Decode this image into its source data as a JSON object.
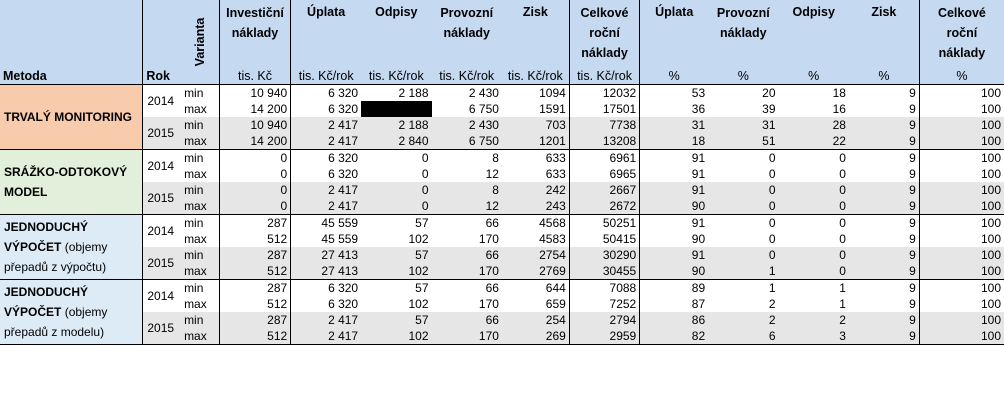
{
  "header": {
    "metoda": "Metoda",
    "rok": "Rok",
    "varianta": "Varianta",
    "investicni": "Investiční náklady",
    "uplata": "Úplata",
    "odpisy": "Odpisy",
    "provozni": "Provozní náklady",
    "zisk": "Zisk",
    "celkove": "Celkové roční náklady",
    "uplata_pct": "Úplata",
    "provozni_pct": "Provozní náklady",
    "odpisy_pct": "Odpisy",
    "zisk_pct": "Zisk",
    "celkove_pct": "Celkové roční náklady"
  },
  "units": {
    "investicni": "tis. Kč",
    "uplata": "tis. Kč/rok",
    "odpisy": "tis. Kč/rok",
    "provozni": "tis. Kč/rok",
    "zisk": "tis. Kč/rok",
    "celkove": "tis. Kč/rok",
    "uplata_pct": "%",
    "provozni_pct": "%",
    "odpisy_pct": "%",
    "zisk_pct": "%",
    "celkove_pct": "%"
  },
  "methods": [
    {
      "name_bold": "TRVALÝ MONITORING",
      "name_normal": "",
      "rows": [
        {
          "year": "2014",
          "var": "min",
          "inv": "10 940",
          "upl": "6 320",
          "odp": "2 188",
          "prov": "2 430",
          "zisk": "1094",
          "celk": "12032",
          "p_upl": "53",
          "p_prov": "20",
          "p_odp": "18",
          "p_zisk": "9",
          "p_celk": "100"
        },
        {
          "year": "",
          "var": "max",
          "inv": "14 200",
          "upl": "6 320",
          "odp": "",
          "prov": "6 750",
          "zisk": "1591",
          "celk": "17501",
          "p_upl": "36",
          "p_prov": "39",
          "p_odp": "16",
          "p_zisk": "9",
          "p_celk": "100"
        },
        {
          "year": "2015",
          "var": "min",
          "inv": "10 940",
          "upl": "2 417",
          "odp": "2 188",
          "prov": "2 430",
          "zisk": "703",
          "celk": "7738",
          "p_upl": "31",
          "p_prov": "31",
          "p_odp": "28",
          "p_zisk": "9",
          "p_celk": "100"
        },
        {
          "year": "",
          "var": "max",
          "inv": "14 200",
          "upl": "2 417",
          "odp": "2 840",
          "prov": "6 750",
          "zisk": "1201",
          "celk": "13208",
          "p_upl": "18",
          "p_prov": "51",
          "p_odp": "22",
          "p_zisk": "9",
          "p_celk": "100"
        }
      ]
    },
    {
      "name_bold": "SRÁŽKO-ODTOKOVÝ MODEL",
      "name_normal": "",
      "rows": [
        {
          "year": "2014",
          "var": "min",
          "inv": "0",
          "upl": "6 320",
          "odp": "0",
          "prov": "8",
          "zisk": "633",
          "celk": "6961",
          "p_upl": "91",
          "p_prov": "0",
          "p_odp": "0",
          "p_zisk": "9",
          "p_celk": "100"
        },
        {
          "year": "",
          "var": "max",
          "inv": "0",
          "upl": "6 320",
          "odp": "0",
          "prov": "12",
          "zisk": "633",
          "celk": "6965",
          "p_upl": "91",
          "p_prov": "0",
          "p_odp": "0",
          "p_zisk": "9",
          "p_celk": "100"
        },
        {
          "year": "2015",
          "var": "min",
          "inv": "0",
          "upl": "2 417",
          "odp": "0",
          "prov": "8",
          "zisk": "242",
          "celk": "2667",
          "p_upl": "91",
          "p_prov": "0",
          "p_odp": "0",
          "p_zisk": "9",
          "p_celk": "100"
        },
        {
          "year": "",
          "var": "max",
          "inv": "0",
          "upl": "2 417",
          "odp": "0",
          "prov": "12",
          "zisk": "243",
          "celk": "2672",
          "p_upl": "90",
          "p_prov": "0",
          "p_odp": "0",
          "p_zisk": "9",
          "p_celk": "100"
        }
      ]
    },
    {
      "name_bold": "JEDNODUCHÝ VÝPOČET",
      "name_normal": "(objemy přepadů z výpočtu)",
      "rows": [
        {
          "year": "2014",
          "var": "min",
          "inv": "287",
          "upl": "45 559",
          "odp": "57",
          "prov": "66",
          "zisk": "4568",
          "celk": "50251",
          "p_upl": "91",
          "p_prov": "0",
          "p_odp": "0",
          "p_zisk": "9",
          "p_celk": "100"
        },
        {
          "year": "",
          "var": "max",
          "inv": "512",
          "upl": "45 559",
          "odp": "102",
          "prov": "170",
          "zisk": "4583",
          "celk": "50415",
          "p_upl": "90",
          "p_prov": "0",
          "p_odp": "0",
          "p_zisk": "9",
          "p_celk": "100"
        },
        {
          "year": "2015",
          "var": "min",
          "inv": "287",
          "upl": "27 413",
          "odp": "57",
          "prov": "66",
          "zisk": "2754",
          "celk": "30290",
          "p_upl": "91",
          "p_prov": "0",
          "p_odp": "0",
          "p_zisk": "9",
          "p_celk": "100"
        },
        {
          "year": "",
          "var": "max",
          "inv": "512",
          "upl": "27 413",
          "odp": "102",
          "prov": "170",
          "zisk": "2769",
          "celk": "30455",
          "p_upl": "90",
          "p_prov": "1",
          "p_odp": "0",
          "p_zisk": "9",
          "p_celk": "100"
        }
      ]
    },
    {
      "name_bold": "JEDNODUCHÝ VÝPOČET",
      "name_normal": "(objemy přepadů z modelu)",
      "rows": [
        {
          "year": "2014",
          "var": "min",
          "inv": "287",
          "upl": "6 320",
          "odp": "57",
          "prov": "66",
          "zisk": "644",
          "celk": "7088",
          "p_upl": "89",
          "p_prov": "1",
          "p_odp": "1",
          "p_zisk": "9",
          "p_celk": "100"
        },
        {
          "year": "",
          "var": "max",
          "inv": "512",
          "upl": "6 320",
          "odp": "102",
          "prov": "170",
          "zisk": "659",
          "celk": "7252",
          "p_upl": "87",
          "p_prov": "2",
          "p_odp": "1",
          "p_zisk": "9",
          "p_celk": "100"
        },
        {
          "year": "2015",
          "var": "min",
          "inv": "287",
          "upl": "2 417",
          "odp": "57",
          "prov": "66",
          "zisk": "254",
          "celk": "2794",
          "p_upl": "86",
          "p_prov": "2",
          "p_odp": "2",
          "p_zisk": "9",
          "p_celk": "100"
        },
        {
          "year": "",
          "var": "max",
          "inv": "512",
          "upl": "2 417",
          "odp": "102",
          "prov": "170",
          "zisk": "269",
          "celk": "2959",
          "p_upl": "82",
          "p_prov": "6",
          "p_odp": "3",
          "p_zisk": "9",
          "p_celk": "100"
        }
      ]
    }
  ]
}
